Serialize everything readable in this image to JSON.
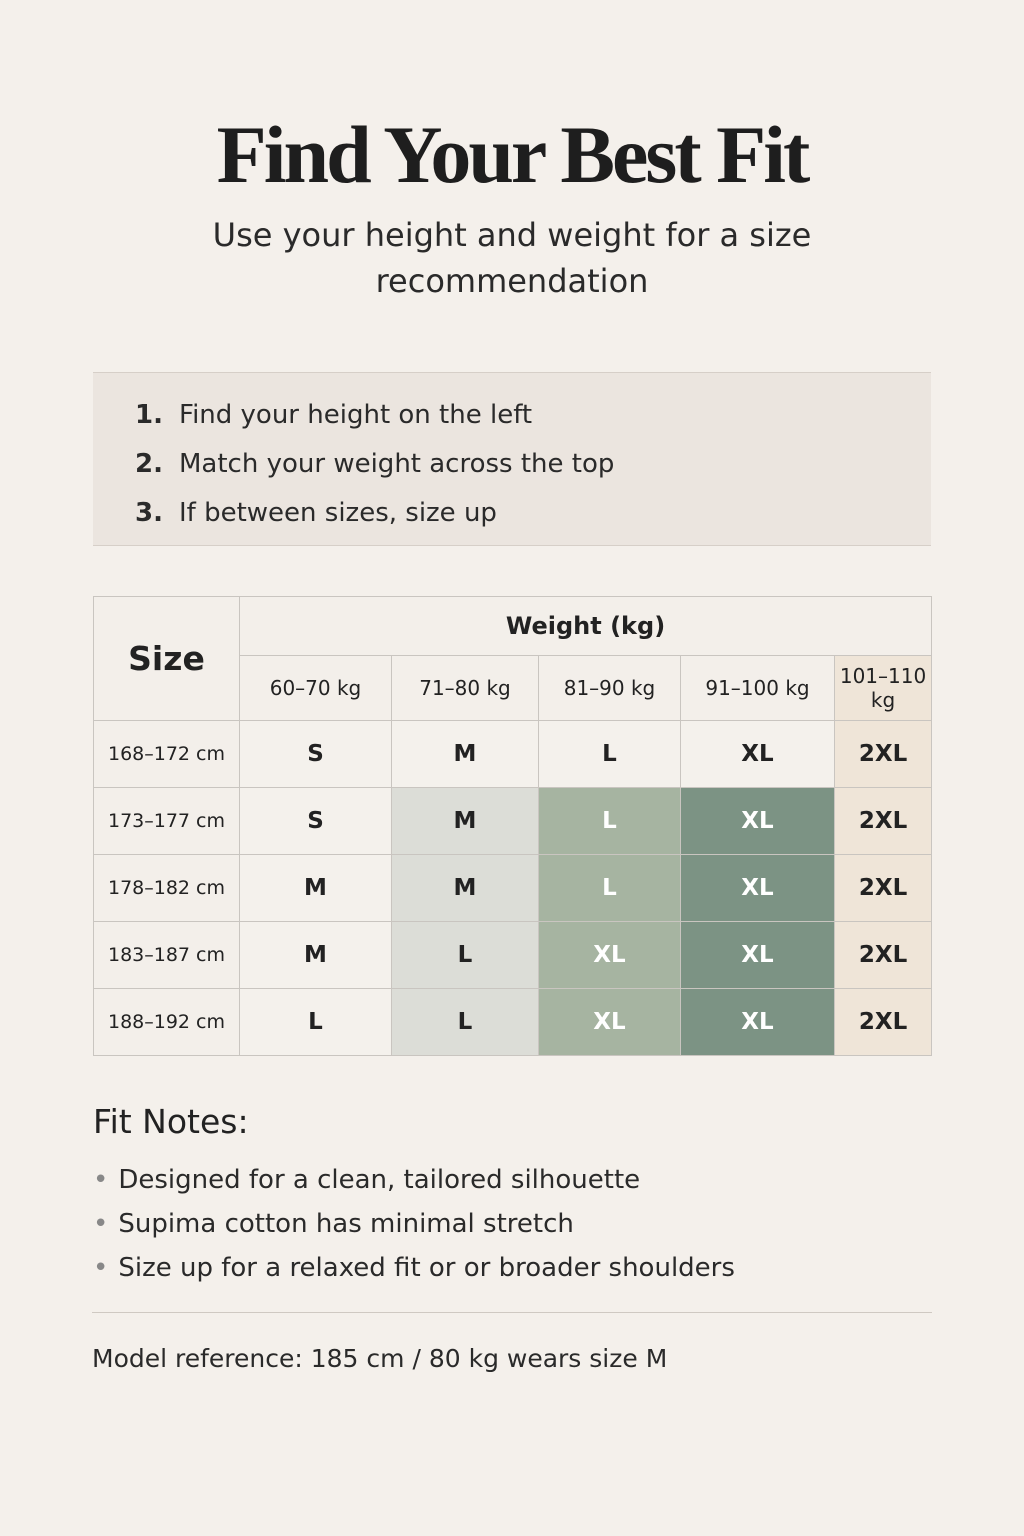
{
  "header": {
    "title": "Find Your Best Fit",
    "subtitle": "Use your height and weight for a size recommendation"
  },
  "steps": [
    {
      "num": "1.",
      "text": "Find your height on the left"
    },
    {
      "num": "2.",
      "text": "Match your weight across the top"
    },
    {
      "num": "3.",
      "text": "If between sizes, size up"
    }
  ],
  "table": {
    "corner": "Size",
    "weight_header": "Weight (kg)",
    "columns": [
      "60–70 kg",
      "71–80 kg",
      "81–90 kg",
      "91–100 kg",
      "101–110 kg"
    ],
    "rows": [
      {
        "height": "168–172 cm",
        "sizes": [
          "S",
          "M",
          "L",
          "XL",
          "2XL"
        ]
      },
      {
        "height": "173–177 cm",
        "sizes": [
          "S",
          "M",
          "L",
          "XL",
          "2XL"
        ]
      },
      {
        "height": "178–182 cm",
        "sizes": [
          "M",
          "M",
          "L",
          "XL",
          "2XL"
        ]
      },
      {
        "height": "183–187 cm",
        "sizes": [
          "M",
          "L",
          "XL",
          "XL",
          "2XL"
        ]
      },
      {
        "height": "188–192 cm",
        "sizes": [
          "L",
          "L",
          "XL",
          "XL",
          "2XL"
        ]
      }
    ],
    "colors": {
      "light_gray": "#dcddd7",
      "sage": "#a6b4a1",
      "dark_sage": "#7c9384",
      "beige": "#efe5d8"
    }
  },
  "fit_notes": {
    "title": "Fit Notes:",
    "items": [
      "Designed for a clean, tailored silhouette",
      "Supima cotton has minimal stretch",
      "Size up for a relaxed fit or or broader shoulders"
    ]
  },
  "model_reference": "Model reference: 185 cm / 80 kg wears size M"
}
